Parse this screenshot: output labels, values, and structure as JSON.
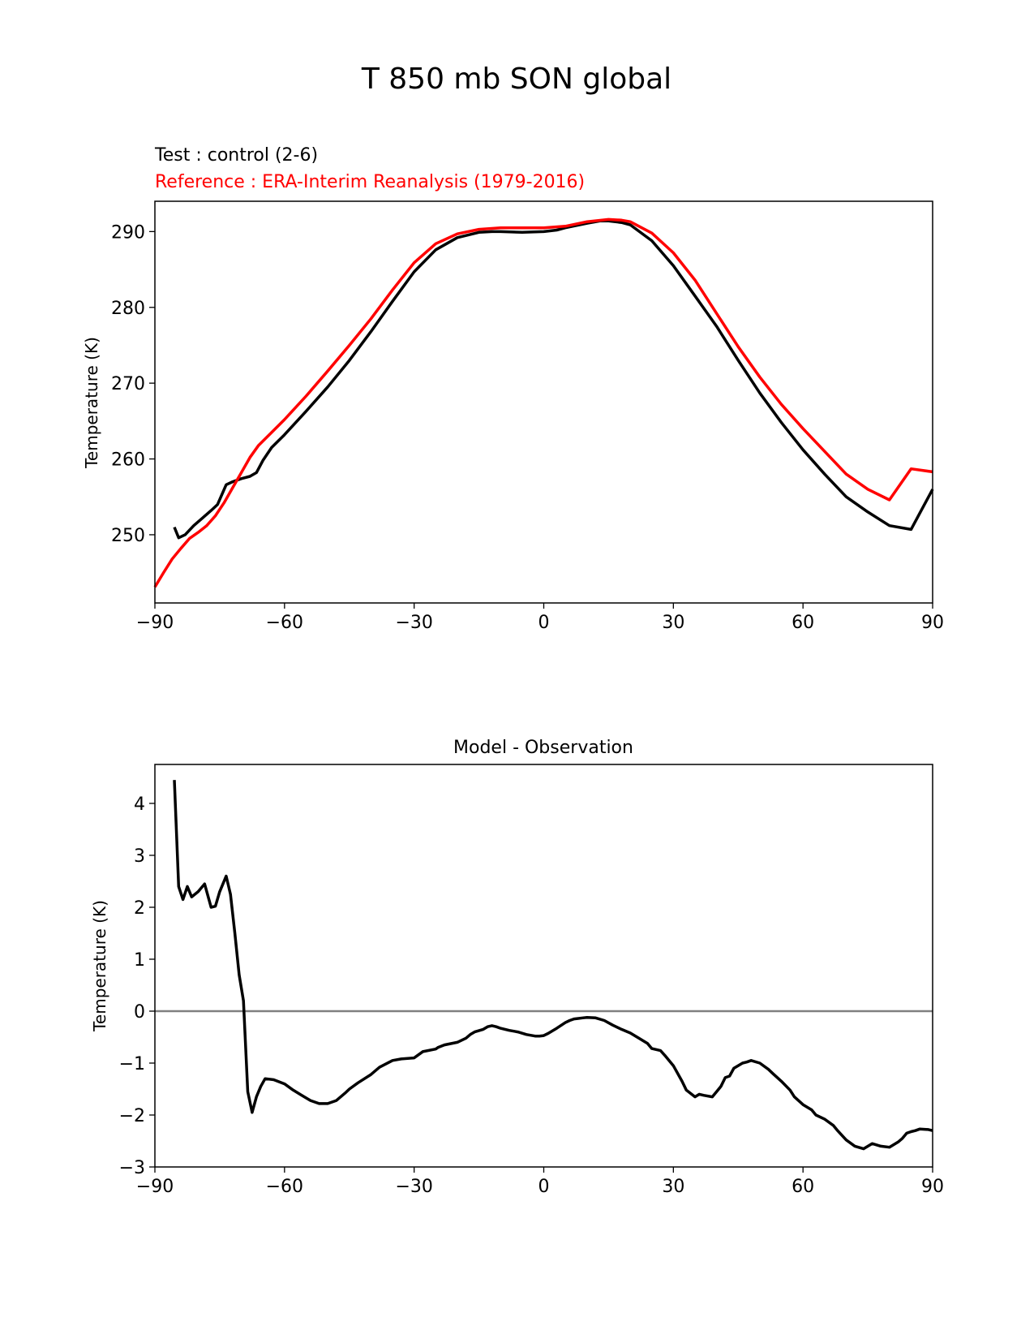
{
  "figure_title": "T 850 mb SON global",
  "chart_data": [
    {
      "type": "line",
      "test_label": "Test : control (2-6)",
      "reference_label": "Reference : ERA-Interim Reanalysis (1979-2016)",
      "ylabel": "Temperature (K)",
      "xlabel": "",
      "xlim": [
        -90,
        90
      ],
      "ylim": [
        241,
        294
      ],
      "xticks": [
        -90,
        -60,
        -30,
        0,
        30,
        60,
        90
      ],
      "xtick_labels": [
        "−90",
        "−60",
        "−30",
        "0",
        "30",
        "60",
        "90"
      ],
      "yticks": [
        250,
        260,
        270,
        280,
        290
      ],
      "ytick_labels": [
        "250",
        "260",
        "270",
        "280",
        "290"
      ],
      "series": [
        {
          "name": "Test",
          "color": "#000000",
          "x": [
            -85.5,
            -84.5,
            -83,
            -81,
            -79,
            -77,
            -75.5,
            -73.5,
            -72,
            -70,
            -68,
            -66.5,
            -65,
            -63,
            -60,
            -55,
            -50,
            -45,
            -40,
            -35,
            -30,
            -25,
            -20,
            -15,
            -12,
            -10,
            -5,
            0,
            3,
            5,
            10,
            13,
            15,
            18,
            20,
            25,
            30,
            35,
            40,
            45,
            50,
            55,
            60,
            65,
            70,
            75,
            80,
            85,
            90
          ],
          "y": [
            251,
            249.6,
            250.0,
            251.2,
            252.2,
            253.2,
            254.0,
            256.6,
            257.0,
            257.4,
            257.7,
            258.2,
            259.8,
            261.5,
            263.2,
            266.3,
            269.5,
            273.0,
            276.8,
            280.8,
            284.7,
            287.6,
            289.2,
            289.9,
            290.0,
            290.0,
            289.9,
            290.0,
            290.2,
            290.5,
            291.1,
            291.4,
            291.4,
            291.2,
            290.9,
            288.8,
            285.5,
            281.5,
            277.5,
            273.0,
            268.7,
            264.8,
            261.2,
            258.0,
            255.0,
            253.0,
            251.2,
            250.7,
            256.0
          ]
        },
        {
          "name": "Reference",
          "color": "#ff0000",
          "x": [
            -90,
            -88,
            -86,
            -84,
            -82,
            -80,
            -78,
            -76,
            -74,
            -72,
            -70,
            -68,
            -66,
            -63,
            -60,
            -55,
            -50,
            -45,
            -40,
            -35,
            -30,
            -25,
            -20,
            -15,
            -10,
            -5,
            0,
            5,
            10,
            15,
            18,
            20,
            25,
            30,
            35,
            40,
            45,
            50,
            55,
            60,
            65,
            70,
            75,
            80,
            85,
            90
          ],
          "y": [
            243.1,
            245.0,
            246.8,
            248.2,
            249.5,
            250.3,
            251.2,
            252.5,
            254.2,
            256.2,
            258.2,
            260.2,
            261.8,
            263.5,
            265.2,
            268.3,
            271.6,
            275.0,
            278.5,
            282.3,
            285.9,
            288.4,
            289.7,
            290.3,
            290.5,
            290.5,
            290.5,
            290.7,
            291.3,
            291.6,
            291.5,
            291.3,
            289.8,
            287.2,
            283.6,
            279.2,
            274.8,
            270.8,
            267.2,
            264.0,
            261.0,
            258.0,
            256.0,
            254.6,
            258.7,
            258.3
          ]
        }
      ]
    },
    {
      "type": "line",
      "title": "Model - Observation",
      "ylabel": "Temperature (K)",
      "xlabel": "",
      "xlim": [
        -90,
        90
      ],
      "ylim": [
        -3,
        4.75
      ],
      "xticks": [
        -90,
        -60,
        -30,
        0,
        30,
        60,
        90
      ],
      "xtick_labels": [
        "−90",
        "−60",
        "−30",
        "0",
        "30",
        "60",
        "90"
      ],
      "yticks": [
        -3,
        -2,
        -1,
        0,
        1,
        2,
        3,
        4
      ],
      "ytick_labels": [
        "−3",
        "−2",
        "−1",
        "0",
        "1",
        "2",
        "3",
        "4"
      ],
      "zero_line_color": "#808080",
      "series": [
        {
          "name": "Model - Observation",
          "color": "#000000",
          "x": [
            -85.5,
            -84.5,
            -83.5,
            -82.5,
            -81.5,
            -80,
            -78.5,
            -77,
            -76,
            -75,
            -73.5,
            -72.5,
            -71.5,
            -70.5,
            -69.5,
            -68.5,
            -67.5,
            -66.5,
            -65.5,
            -64.5,
            -62.5,
            -60,
            -58,
            -56,
            -54,
            -52,
            -50,
            -48,
            -46,
            -45,
            -43,
            -40,
            -38,
            -35,
            -33,
            -30,
            -28,
            -25,
            -24.5,
            -23,
            -20,
            -18,
            -17,
            -16,
            -14,
            -13,
            -12,
            -11,
            -10,
            -8,
            -6,
            -4,
            -2,
            -1,
            0,
            1,
            3,
            5,
            6,
            7,
            8,
            9,
            10,
            12,
            14,
            16,
            18,
            20,
            22,
            24,
            25,
            27,
            28,
            30,
            32,
            33,
            35,
            36,
            37,
            39,
            40,
            41,
            42,
            43,
            44,
            46,
            47,
            48,
            50,
            52,
            53,
            55,
            57,
            58,
            60,
            62,
            63,
            65,
            67,
            68,
            70,
            72,
            74,
            76,
            78,
            80,
            82,
            83,
            84,
            85,
            86,
            87,
            89,
            90
          ],
          "y": [
            4.45,
            2.4,
            2.15,
            2.4,
            2.2,
            2.3,
            2.45,
            2.0,
            2.02,
            2.3,
            2.6,
            2.25,
            1.5,
            0.7,
            0.2,
            -1.55,
            -1.95,
            -1.65,
            -1.45,
            -1.3,
            -1.32,
            -1.4,
            -1.52,
            -1.62,
            -1.72,
            -1.78,
            -1.78,
            -1.72,
            -1.58,
            -1.5,
            -1.38,
            -1.22,
            -1.08,
            -0.95,
            -0.92,
            -0.9,
            -0.78,
            -0.73,
            -0.7,
            -0.65,
            -0.6,
            -0.52,
            -0.45,
            -0.4,
            -0.35,
            -0.3,
            -0.28,
            -0.3,
            -0.33,
            -0.37,
            -0.4,
            -0.45,
            -0.48,
            -0.48,
            -0.47,
            -0.43,
            -0.33,
            -0.22,
            -0.18,
            -0.15,
            -0.14,
            -0.13,
            -0.12,
            -0.13,
            -0.18,
            -0.27,
            -0.35,
            -0.42,
            -0.52,
            -0.62,
            -0.72,
            -0.76,
            -0.85,
            -1.05,
            -1.35,
            -1.52,
            -1.65,
            -1.6,
            -1.62,
            -1.65,
            -1.55,
            -1.45,
            -1.28,
            -1.25,
            -1.1,
            -1.0,
            -0.98,
            -0.95,
            -1.0,
            -1.12,
            -1.2,
            -1.35,
            -1.52,
            -1.65,
            -1.8,
            -1.9,
            -2.0,
            -2.08,
            -2.2,
            -2.3,
            -2.48,
            -2.6,
            -2.65,
            -2.55,
            -2.6,
            -2.62,
            -2.52,
            -2.45,
            -2.35,
            -2.32,
            -2.3,
            -2.27,
            -2.28,
            -2.3
          ]
        }
      ]
    }
  ]
}
